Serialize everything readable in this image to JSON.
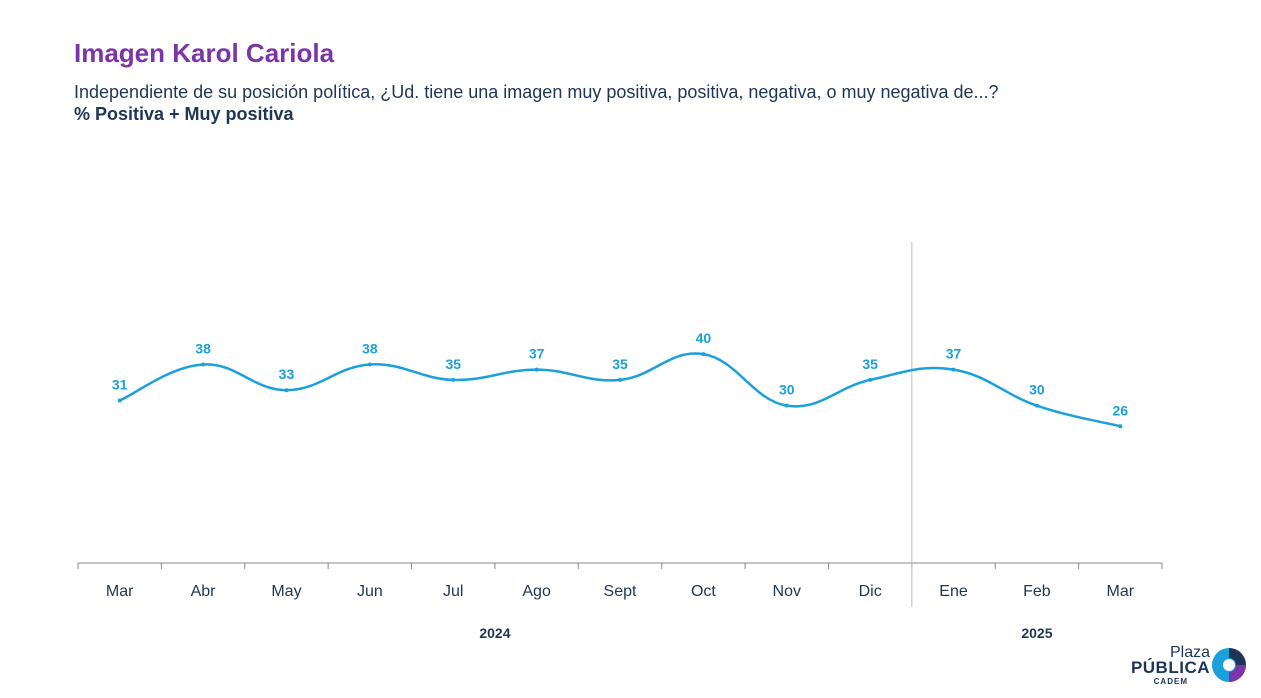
{
  "header": {
    "title": "Imagen Karol Cariola",
    "subtitle": "Independiente de su posición política, ¿Ud. tiene una imagen muy positiva, positiva, negativa, o muy negativa de...?",
    "metric": "% Positiva + Muy positiva"
  },
  "chart_data": {
    "type": "line",
    "title": "Imagen Karol Cariola",
    "categories": [
      "Mar",
      "Abr",
      "May",
      "Jun",
      "Jul",
      "Ago",
      "Sept",
      "Oct",
      "Nov",
      "Dic",
      "Ene",
      "Feb",
      "Mar"
    ],
    "series": [
      {
        "name": "",
        "values": [
          31,
          38,
          33,
          38,
          35,
          37,
          35,
          40,
          30,
          35,
          37,
          30,
          26
        ],
        "color": "#1ba0dc"
      }
    ],
    "year_groups": [
      {
        "label": "2024",
        "start": 0,
        "end": 9
      },
      {
        "label": "2025",
        "start": 10,
        "end": 12
      }
    ],
    "year_divider_after_index": 9,
    "xlabel": "",
    "ylabel": "",
    "ylim": [
      0,
      60
    ],
    "grid": false,
    "data_labels": true
  },
  "logo": {
    "line1": "Plaza",
    "line2": "PÚBLICA",
    "line3": "CADEM",
    "colors": {
      "navy": "#1f3556",
      "blue": "#1ba0dc",
      "purple": "#7b35a8"
    }
  },
  "colors": {
    "title": "#7b35a8",
    "text": "#1f3556",
    "series": "#1ba0dc",
    "axis": "#888888"
  }
}
